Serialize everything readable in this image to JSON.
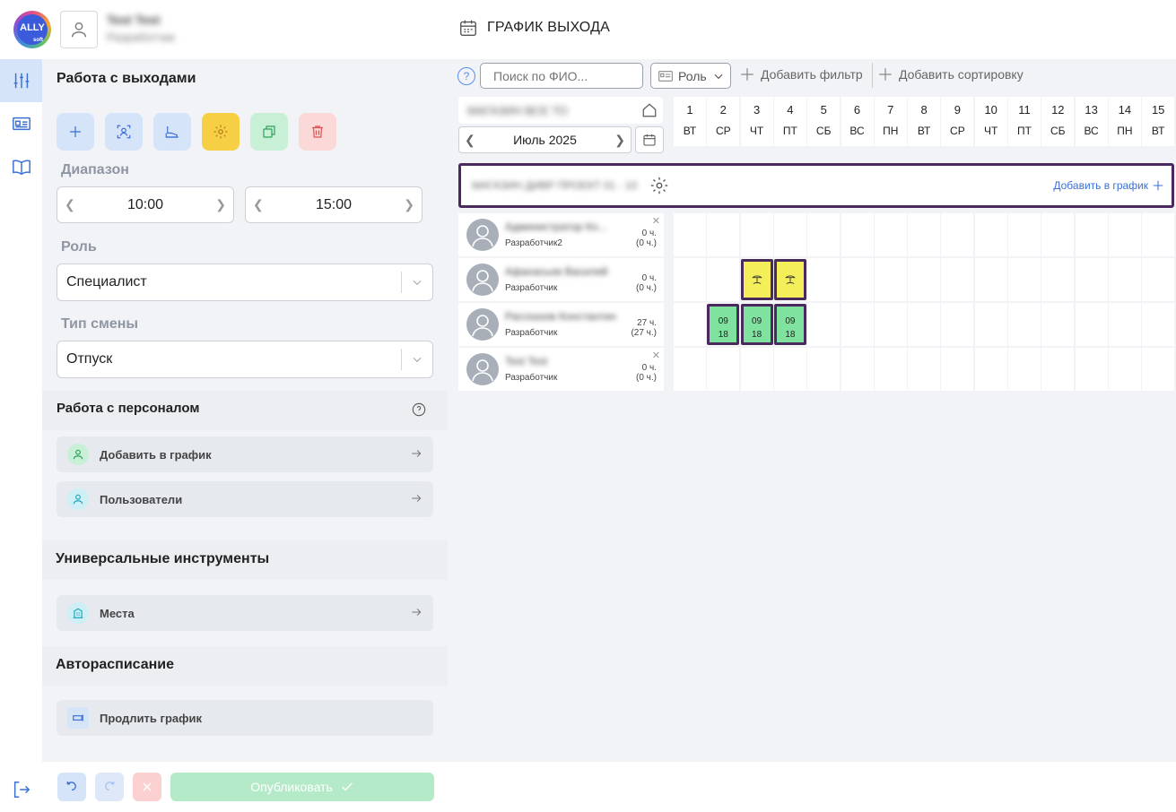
{
  "header": {
    "logo_text": "ALLY",
    "logo_sub": "soft",
    "user_name": "Test Test",
    "user_sub": "Разработчик",
    "page_title": "ГРАФИК ВЫХОДА"
  },
  "rail": {
    "items": [
      {
        "icon": "sliders-icon",
        "active": true
      },
      {
        "icon": "id-card-icon",
        "active": false
      },
      {
        "icon": "book-icon",
        "active": false
      }
    ],
    "logout_icon": "logout-icon"
  },
  "panel": {
    "shifts_section": "Работа с выходами",
    "tools": [
      {
        "icon": "plus-icon",
        "color": "#d6e4fa"
      },
      {
        "icon": "users-target-icon",
        "color": "#d6e4fa"
      },
      {
        "icon": "shoe-icon",
        "color": "#d6e4fa"
      },
      {
        "icon": "gear-icon",
        "color": "#f7cf45"
      },
      {
        "icon": "copy-icon",
        "color": "#c8f0d6"
      },
      {
        "icon": "trash-icon",
        "color": "#fbd9d9"
      }
    ],
    "range_label": "Диапазон",
    "time_from": "10:00",
    "time_to": "15:00",
    "role_label": "Роль",
    "role_value": "Специалист",
    "shift_type_label": "Тип смены",
    "shift_type_value": "Отпуск",
    "staff_section": "Работа с персоналом",
    "staff_items": [
      "Добавить в график",
      "Пользователи"
    ],
    "tools_section": "Универсальные инструменты",
    "tools_items": [
      "Места"
    ],
    "auto_section": "Авторасписание",
    "auto_items": [
      "Продлить график"
    ],
    "publish_label": "Опубликовать"
  },
  "toolbar": {
    "help": "?",
    "search_placeholder": "Поиск по ФИО...",
    "role_button": "Роль",
    "add_filter": "Добавить фильтр",
    "add_sort": "Добавить сортировку"
  },
  "calendar": {
    "org_name": "МАГАЗИН ВСЕ ТО",
    "month": "Июль 2025",
    "days": [
      {
        "n": "1",
        "w": "ВТ"
      },
      {
        "n": "2",
        "w": "СР"
      },
      {
        "n": "3",
        "w": "ЧТ"
      },
      {
        "n": "4",
        "w": "ПТ"
      },
      {
        "n": "5",
        "w": "СБ"
      },
      {
        "n": "6",
        "w": "ВС"
      },
      {
        "n": "7",
        "w": "ПН"
      },
      {
        "n": "8",
        "w": "ВТ"
      },
      {
        "n": "9",
        "w": "СР"
      },
      {
        "n": "10",
        "w": "ЧТ"
      },
      {
        "n": "11",
        "w": "ПТ"
      },
      {
        "n": "12",
        "w": "СБ"
      },
      {
        "n": "13",
        "w": "ВС"
      },
      {
        "n": "14",
        "w": "ПН"
      },
      {
        "n": "15",
        "w": "ВТ"
      }
    ],
    "group_name": "МАГАЗИН ДИВР ПРОЕКТ 01 - 10",
    "add_to_graph": "Добавить в график",
    "employees": [
      {
        "name": "Администратор Ко...",
        "role": "Разработчик2",
        "hours": "0 ч.",
        "hours2": "(0 ч.)",
        "closable": true
      },
      {
        "name": "Афанасьев Василий",
        "role": "Разработчик",
        "hours": "0 ч.",
        "hours2": "(0 ч.)",
        "closable": false
      },
      {
        "name": "Рассказов Константин",
        "role": "Разработчик",
        "hours": "27 ч.",
        "hours2": "(27 ч.)",
        "closable": false
      },
      {
        "name": "Test Test",
        "role": "Разработчик",
        "hours": "0 ч.",
        "hours2": "(0 ч.)",
        "closable": true
      }
    ],
    "shifts": [
      {
        "row": 1,
        "day": 3,
        "kind": "vacation",
        "icon": "vacation-icon"
      },
      {
        "row": 1,
        "day": 4,
        "kind": "vacation",
        "icon": "vacation-icon"
      },
      {
        "row": 2,
        "day": 2,
        "kind": "work",
        "start": "09",
        "end": "18"
      },
      {
        "row": 2,
        "day": 3,
        "kind": "work",
        "start": "09",
        "end": "18"
      },
      {
        "row": 2,
        "day": 4,
        "kind": "work",
        "start": "09",
        "end": "18"
      }
    ]
  }
}
